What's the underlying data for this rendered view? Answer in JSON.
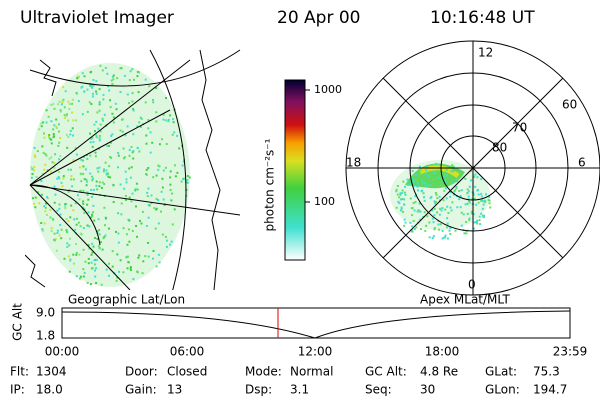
{
  "header": {
    "title": "Ultraviolet Imager",
    "date": "20 Apr 00",
    "time": "10:16:48 UT"
  },
  "colorbar": {
    "label": "photon cm⁻²s⁻¹",
    "ticks": [
      "1000",
      "100"
    ]
  },
  "polar": {
    "labels": [
      "12",
      "18",
      "6",
      "0",
      "60",
      "70",
      "80"
    ]
  },
  "panel_labels": [
    "Geographic Lat/Lon",
    "Apex MLat/MLT"
  ],
  "altitude": {
    "axis_label": "GC Alt",
    "yticks": [
      "9.0",
      "1.8"
    ],
    "xticks": [
      "00:00",
      "06:00",
      "12:00",
      "18:00",
      "23:59"
    ]
  },
  "status": [
    [
      [
        "Flt:",
        "1304"
      ],
      [
        "Door:",
        "Closed"
      ],
      [
        "Mode:",
        "Normal"
      ],
      [
        "GC Alt:",
        "4.8 Re"
      ],
      [
        "GLat:",
        "75.3"
      ]
    ],
    [
      [
        "IP:",
        "18.0"
      ],
      [
        "Gain:",
        "13"
      ],
      [
        "Dsp:",
        "3.1"
      ],
      [
        "Seq:",
        "30"
      ],
      [
        "GLon:",
        "194.7"
      ]
    ]
  ]
}
